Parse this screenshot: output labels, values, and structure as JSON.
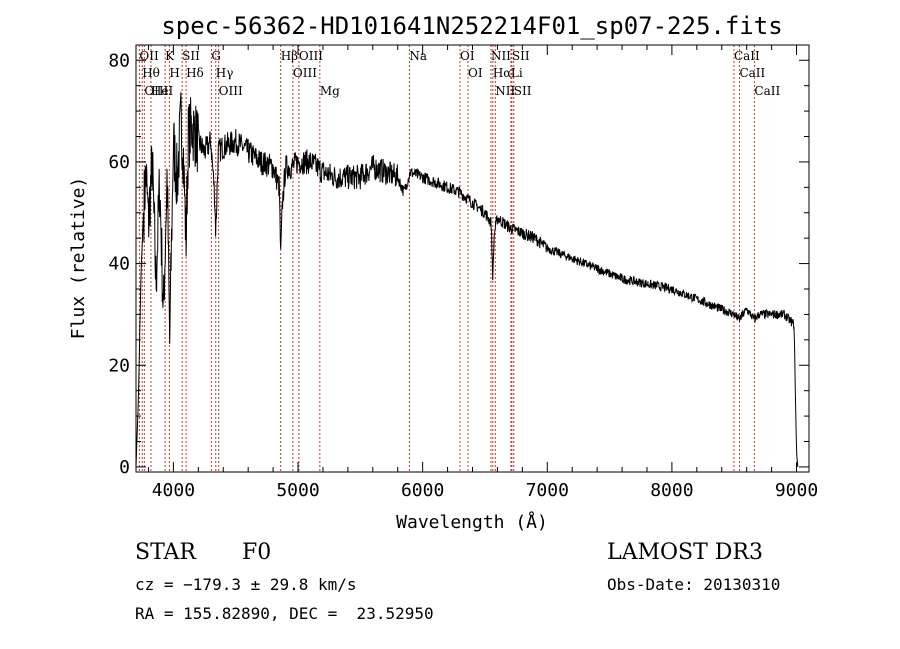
{
  "chart_data": {
    "type": "line",
    "title": "spec-56362-HD101641N252214F01_sp07-225.fits",
    "xlabel": "Wavelength (Å)",
    "ylabel": "Flux (relative)",
    "xlim": [
      3700,
      9100
    ],
    "ylim": [
      -1,
      83
    ],
    "x_ticks": [
      4000,
      5000,
      6000,
      7000,
      8000,
      9000
    ],
    "y_ticks": [
      0,
      20,
      40,
      60,
      80
    ],
    "series": [
      {
        "name": "spectrum",
        "x": [
          3700,
          3720,
          3740,
          3760,
          3780,
          3800,
          3830,
          3860,
          3890,
          3920,
          3950,
          3970,
          4000,
          4030,
          4060,
          4080,
          4101,
          4120,
          4150,
          4200,
          4250,
          4300,
          4330,
          4340,
          4360,
          4400,
          4500,
          4600,
          4700,
          4800,
          4850,
          4861,
          4875,
          4900,
          4950,
          5000,
          5100,
          5200,
          5300,
          5400,
          5500,
          5600,
          5700,
          5800,
          5850,
          5900,
          6000,
          6100,
          6200,
          6300,
          6400,
          6500,
          6550,
          6563,
          6575,
          6600,
          6700,
          6800,
          6900,
          7000,
          7200,
          7400,
          7600,
          7800,
          8000,
          8200,
          8400,
          8500,
          8540,
          8600,
          8662,
          8700,
          8800,
          8900,
          8980,
          9000,
          9010
        ],
        "y": [
          0,
          14,
          38,
          50,
          58,
          48,
          60,
          36,
          56,
          30,
          58,
          24,
          64,
          56,
          68,
          62,
          44,
          65,
          67,
          64,
          62,
          64,
          54,
          46,
          62,
          63,
          64,
          62,
          60,
          59,
          55,
          41,
          52,
          59,
          59,
          60,
          60,
          58,
          57,
          57,
          57,
          59,
          58,
          57,
          54,
          58,
          57,
          56,
          55,
          54,
          52,
          50,
          48,
          37,
          46,
          49,
          47,
          46,
          45,
          43,
          41,
          39,
          37,
          36,
          35,
          33,
          31,
          30,
          29,
          31,
          29,
          30,
          30,
          30,
          28,
          3,
          0
        ]
      }
    ],
    "line_markers": [
      {
        "label": "OII",
        "x": 3727
      },
      {
        "label": "Hθ",
        "x": 3750
      },
      {
        "label": "OIII",
        "x": 3767
      },
      {
        "label": "HeI",
        "x": 3820
      },
      {
        "label": "K",
        "x": 3934
      },
      {
        "label": "H",
        "x": 3968
      },
      {
        "label": "SII",
        "x": 4070
      },
      {
        "label": "Hδ",
        "x": 4102
      },
      {
        "label": "G",
        "x": 4305
      },
      {
        "label": "Hγ",
        "x": 4340
      },
      {
        "label": "OIII",
        "x": 4363
      },
      {
        "label": "Hβ",
        "x": 4861
      },
      {
        "label": "OIII",
        "x": 4959
      },
      {
        "label": "OIII",
        "x": 5007
      },
      {
        "label": "Mg",
        "x": 5175
      },
      {
        "label": "Na",
        "x": 5894
      },
      {
        "label": "OI",
        "x": 6300
      },
      {
        "label": "OI",
        "x": 6364
      },
      {
        "label": "NII",
        "x": 6548
      },
      {
        "label": "Hα",
        "x": 6563
      },
      {
        "label": "NII",
        "x": 6583
      },
      {
        "label": "Li",
        "x": 6708
      },
      {
        "label": "SII",
        "x": 6716
      },
      {
        "label": "SII",
        "x": 6731
      },
      {
        "label": "CaII",
        "x": 8498
      },
      {
        "label": "CaII",
        "x": 8542
      },
      {
        "label": "CaII",
        "x": 8662
      }
    ]
  },
  "info": {
    "object_class": "STAR",
    "subclass": "F0",
    "survey": "LAMOST DR3",
    "cz": "cz = −179.3 ± 29.8 km/s",
    "obs_date": "Obs-Date: 20130310",
    "coords": "RA = 155.82890, DEC =  23.52950"
  },
  "colors": {
    "spectrum": "#000000",
    "marker": "#c0392b"
  }
}
